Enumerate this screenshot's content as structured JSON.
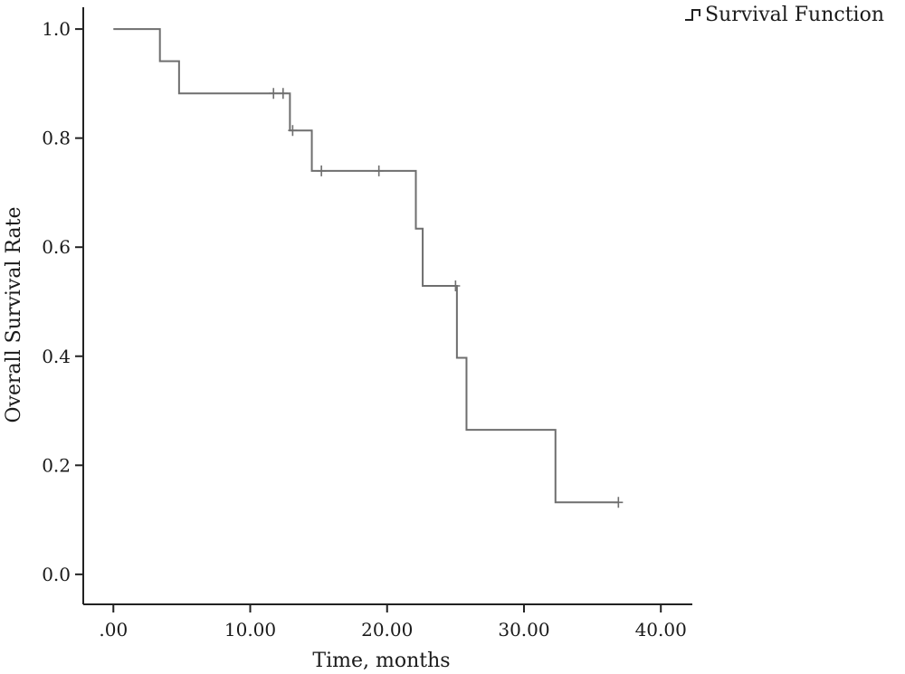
{
  "chart_data": {
    "type": "line",
    "subtype": "kaplan-meier-step",
    "xlabel": "Time, months",
    "ylabel": "Overall Survival Rate",
    "xlim": [
      -2.2,
      42.3
    ],
    "ylim": [
      -0.055,
      1.04
    ],
    "x_ticks": [
      0,
      10,
      20,
      30,
      40
    ],
    "x_tick_labels": [
      ".00",
      "10.00",
      "20.00",
      "30.00",
      "40.00"
    ],
    "y_ticks": [
      0,
      0.2,
      0.4,
      0.6,
      0.8,
      1.0
    ],
    "y_tick_labels": [
      "0.0",
      "0.2",
      "0.4",
      "0.6",
      "0.8",
      "1.0"
    ],
    "grid": false,
    "legend": {
      "position": "top-right",
      "entries": [
        "Survival Function"
      ]
    },
    "series": [
      {
        "name": "Survival Function",
        "color": "#6e6e6e",
        "steps": [
          {
            "x": 0.0,
            "y": 1.0
          },
          {
            "x": 3.4,
            "y": 0.941
          },
          {
            "x": 4.8,
            "y": 0.882
          },
          {
            "x": 12.9,
            "y": 0.814
          },
          {
            "x": 14.5,
            "y": 0.74
          },
          {
            "x": 22.1,
            "y": 0.634
          },
          {
            "x": 22.6,
            "y": 0.529
          },
          {
            "x": 25.1,
            "y": 0.397
          },
          {
            "x": 25.8,
            "y": 0.265
          },
          {
            "x": 32.3,
            "y": 0.132
          }
        ],
        "end_x": 36.9,
        "censored": [
          {
            "x": 11.7,
            "y": 0.882
          },
          {
            "x": 12.4,
            "y": 0.882
          },
          {
            "x": 13.1,
            "y": 0.814
          },
          {
            "x": 15.2,
            "y": 0.74
          },
          {
            "x": 19.4,
            "y": 0.74
          },
          {
            "x": 25.0,
            "y": 0.529
          },
          {
            "x": 36.9,
            "y": 0.132
          }
        ]
      }
    ]
  }
}
